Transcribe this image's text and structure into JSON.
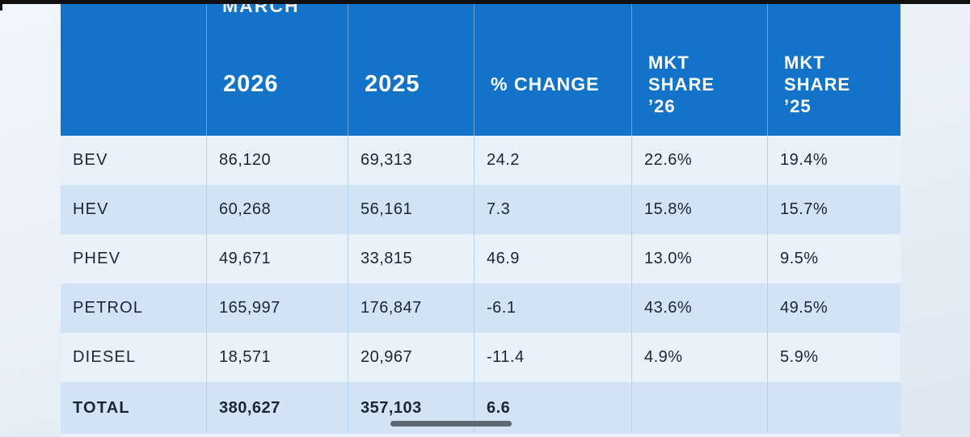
{
  "colors": {
    "header_blue": "#1273c9",
    "row_light": "#e9f1fb",
    "row_dark": "#d1e3f5",
    "text_dark": "#1b2634",
    "divider": "#b7d4ee",
    "scrollbar": "#5d6772"
  },
  "table": {
    "month_label": "MARCH",
    "headers": {
      "fuel": "",
      "year_a": "2026",
      "year_b": "2025",
      "change": "% CHANGE",
      "share26": [
        "MKT",
        "SHARE",
        "’26"
      ],
      "share25": [
        "MKT",
        "SHARE",
        "’25"
      ]
    },
    "rows": [
      {
        "label": "BEV",
        "v2026": "86,120",
        "v2025": "69,313",
        "change": "24.2",
        "share26": "22.6%",
        "share25": "19.4%"
      },
      {
        "label": "HEV",
        "v2026": "60,268",
        "v2025": "56,161",
        "change": "7.3",
        "share26": "15.8%",
        "share25": "15.7%"
      },
      {
        "label": "PHEV",
        "v2026": "49,671",
        "v2025": "33,815",
        "change": "46.9",
        "share26": "13.0%",
        "share25": "9.5%"
      },
      {
        "label": "PETROL",
        "v2026": "165,997",
        "v2025": "176,847",
        "change": "-6.1",
        "share26": "43.6%",
        "share25": "49.5%"
      },
      {
        "label": "DIESEL",
        "v2026": "18,571",
        "v2025": "20,967",
        "change": "-11.4",
        "share26": "4.9%",
        "share25": "5.9%"
      },
      {
        "label": "TOTAL",
        "v2026": "380,627",
        "v2025": "357,103",
        "change": "6.6",
        "share26": "",
        "share25": ""
      }
    ]
  },
  "chart_data": {
    "type": "table",
    "title": "MARCH",
    "columns": [
      "",
      "2026",
      "2025",
      "% CHANGE",
      "MKT SHARE '26",
      "MKT SHARE '25"
    ],
    "rows": [
      [
        "BEV",
        86120,
        69313,
        24.2,
        "22.6%",
        "19.4%"
      ],
      [
        "HEV",
        60268,
        56161,
        7.3,
        "15.8%",
        "15.7%"
      ],
      [
        "PHEV",
        49671,
        33815,
        46.9,
        "13.0%",
        "9.5%"
      ],
      [
        "PETROL",
        165997,
        176847,
        -6.1,
        "43.6%",
        "49.5%"
      ],
      [
        "DIESEL",
        18571,
        20967,
        -11.4,
        "4.9%",
        "5.9%"
      ],
      [
        "TOTAL",
        380627,
        357103,
        6.6,
        "",
        ""
      ]
    ]
  }
}
